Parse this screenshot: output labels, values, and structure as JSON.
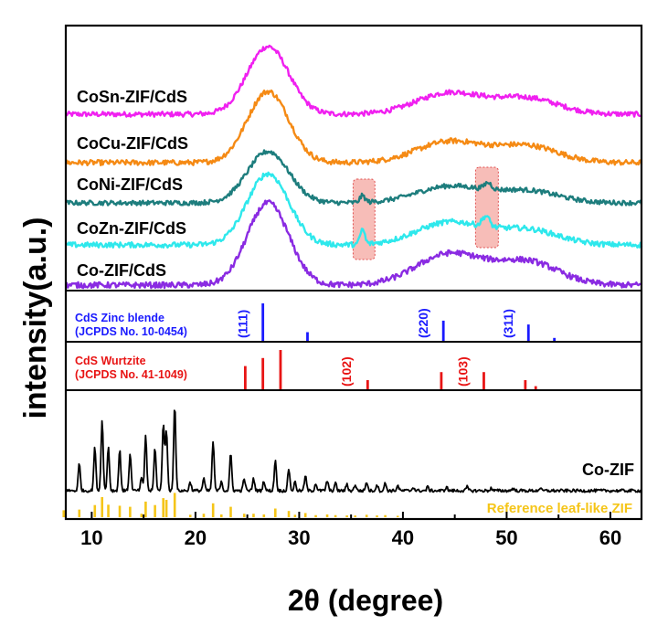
{
  "chart_data": {
    "type": "line",
    "xlabel": "2θ (degree)",
    "ylabel": "intensity(a.u.)",
    "xlim": [
      7.5,
      63
    ],
    "xticks": [
      10,
      20,
      30,
      40,
      50,
      60
    ],
    "top_panel": {
      "series": [
        {
          "name": "CoSn-ZIF/CdS",
          "color": "#f020f0",
          "peaks": [
            {
              "x": 27,
              "h": 0.95,
              "w": 2.0
            },
            {
              "x": 44.5,
              "h": 0.3,
              "w": 3.2
            },
            {
              "x": 52,
              "h": 0.22,
              "w": 3.0
            }
          ]
        },
        {
          "name": "CoCu-ZIF/CdS",
          "color": "#f58a14",
          "peaks": [
            {
              "x": 27,
              "h": 0.95,
              "w": 2.0
            },
            {
              "x": 44.5,
              "h": 0.28,
              "w": 3.2
            },
            {
              "x": 52,
              "h": 0.22,
              "w": 3.0
            }
          ]
        },
        {
          "name": "CoNi-ZIF/CdS",
          "color": "#1d7d7d",
          "peaks": [
            {
              "x": 27,
              "h": 0.78,
              "w": 2.0
            },
            {
              "x": 36.1,
              "h": 0.1,
              "w": 0.25
            },
            {
              "x": 44.5,
              "h": 0.25,
              "w": 3.2
            },
            {
              "x": 48.2,
              "h": 0.1,
              "w": 0.35
            },
            {
              "x": 52,
              "h": 0.18,
              "w": 3.0
            }
          ]
        },
        {
          "name": "CoZn-ZIF/CdS",
          "color": "#2ee8ec",
          "peaks": [
            {
              "x": 27,
              "h": 0.95,
              "w": 2.0
            },
            {
              "x": 36.1,
              "h": 0.2,
              "w": 0.22
            },
            {
              "x": 44.5,
              "h": 0.3,
              "w": 3.2
            },
            {
              "x": 48.0,
              "h": 0.14,
              "w": 0.35
            },
            {
              "x": 52,
              "h": 0.2,
              "w": 3.0
            }
          ]
        },
        {
          "name": "Co-ZIF/CdS",
          "color": "#8a2be2",
          "peaks": [
            {
              "x": 27,
              "h": 1.0,
              "w": 2.0
            },
            {
              "x": 44.5,
              "h": 0.38,
              "w": 3.2
            },
            {
              "x": 52,
              "h": 0.28,
              "w": 3.0
            }
          ]
        }
      ],
      "highlight_regions": [
        [
          35.2,
          37.3
        ],
        [
          47.0,
          49.2
        ]
      ]
    },
    "reference_zinc_blende": {
      "name_line1": "CdS Zinc blende",
      "name_line2": "(JCPDS No. 10-0454)",
      "color": "#1a1aff",
      "x": [
        26.5,
        30.8,
        43.9,
        52.1,
        54.6
      ],
      "intensity": [
        1.0,
        0.25,
        0.55,
        0.45,
        0.1
      ],
      "miller_labels": [
        {
          "text": "(111)",
          "x": 25.0
        },
        {
          "text": "(220)",
          "x": 42.4
        },
        {
          "text": "(311)",
          "x": 50.6
        }
      ]
    },
    "reference_wurtzite": {
      "name_line1": "CdS Wurtzite",
      "name_line2": "(JCPDS No. 41-1049)",
      "color": "#e81414",
      "x": [
        24.8,
        26.5,
        28.2,
        36.6,
        43.7,
        47.8,
        51.8,
        52.8
      ],
      "intensity": [
        0.6,
        0.8,
        1.0,
        0.25,
        0.45,
        0.45,
        0.25,
        0.1
      ],
      "miller_labels": [
        {
          "text": "(102)",
          "x": 35.0
        },
        {
          "text": "(103)",
          "x": 46.2
        }
      ]
    },
    "bottom_panel": {
      "series_name": "Co-ZIF",
      "series_color": "#000000",
      "reference_name": "Reference leaf-like ZIF",
      "reference_color": "#f5c518",
      "peaks": [
        {
          "x": 7.3,
          "h": 0.2
        },
        {
          "x": 8.8,
          "h": 0.22
        },
        {
          "x": 10.3,
          "h": 0.35
        },
        {
          "x": 11.0,
          "h": 0.58
        },
        {
          "x": 11.6,
          "h": 0.36
        },
        {
          "x": 12.7,
          "h": 0.33
        },
        {
          "x": 13.7,
          "h": 0.3
        },
        {
          "x": 14.8,
          "h": 0.1
        },
        {
          "x": 15.2,
          "h": 0.45
        },
        {
          "x": 16.1,
          "h": 0.35
        },
        {
          "x": 16.9,
          "h": 0.55
        },
        {
          "x": 17.2,
          "h": 0.5
        },
        {
          "x": 18.0,
          "h": 0.7
        },
        {
          "x": 19.5,
          "h": 0.07
        },
        {
          "x": 20.8,
          "h": 0.1
        },
        {
          "x": 21.7,
          "h": 0.4
        },
        {
          "x": 22.5,
          "h": 0.08
        },
        {
          "x": 23.4,
          "h": 0.3
        },
        {
          "x": 24.7,
          "h": 0.1
        },
        {
          "x": 25.6,
          "h": 0.1
        },
        {
          "x": 26.6,
          "h": 0.08
        },
        {
          "x": 27.7,
          "h": 0.25
        },
        {
          "x": 29.0,
          "h": 0.18
        },
        {
          "x": 29.6,
          "h": 0.07
        },
        {
          "x": 30.6,
          "h": 0.12
        },
        {
          "x": 31.6,
          "h": 0.06
        },
        {
          "x": 32.7,
          "h": 0.08
        },
        {
          "x": 33.5,
          "h": 0.06
        },
        {
          "x": 34.6,
          "h": 0.05
        },
        {
          "x": 35.4,
          "h": 0.05
        },
        {
          "x": 36.5,
          "h": 0.07
        },
        {
          "x": 37.5,
          "h": 0.05
        },
        {
          "x": 38.3,
          "h": 0.06
        },
        {
          "x": 39.5,
          "h": 0.04
        },
        {
          "x": 41.0,
          "h": 0.03
        },
        {
          "x": 42.4,
          "h": 0.03
        },
        {
          "x": 44.2,
          "h": 0.03
        },
        {
          "x": 46.2,
          "h": 0.03
        },
        {
          "x": 48.5,
          "h": 0.02
        },
        {
          "x": 50.6,
          "h": 0.02
        },
        {
          "x": 53.2,
          "h": 0.02
        }
      ]
    }
  }
}
